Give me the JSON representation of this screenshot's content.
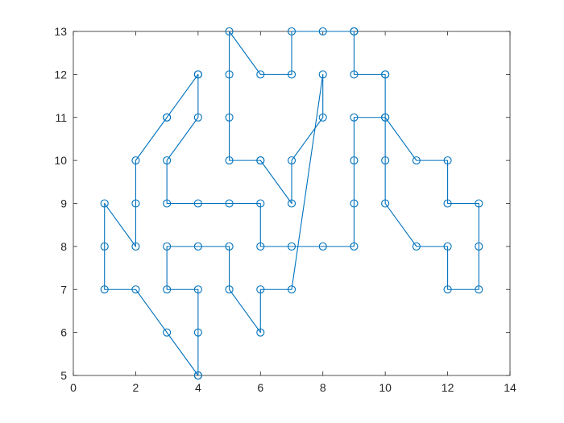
{
  "chart_data": {
    "type": "line",
    "title": "",
    "xlabel": "",
    "ylabel": "",
    "xlim": [
      0,
      14
    ],
    "ylim": [
      5,
      13
    ],
    "xticks": [
      0,
      2,
      4,
      6,
      8,
      10,
      12,
      14
    ],
    "yticks": [
      5,
      6,
      7,
      8,
      9,
      10,
      11,
      12,
      13
    ],
    "grid": false,
    "legend": "none",
    "marker": "circle",
    "color": "#0072BD",
    "series": [
      {
        "x": [
          4,
          3,
          2,
          1,
          1,
          1,
          2,
          2,
          2,
          3,
          3,
          4,
          4,
          4,
          3,
          3,
          4,
          5,
          6,
          6,
          7,
          8,
          9,
          9,
          9,
          9,
          10,
          10,
          10,
          11,
          12,
          12,
          13,
          13,
          13,
          12,
          12,
          11,
          10,
          10,
          10,
          9,
          9,
          9,
          8,
          7,
          7,
          6,
          5,
          5,
          5,
          5,
          6,
          6,
          7,
          7,
          8,
          8,
          7,
          6,
          6,
          5,
          5,
          4,
          3,
          3,
          4,
          4,
          4
        ],
        "y": [
          5,
          6,
          7,
          7,
          8,
          9,
          8,
          9,
          10,
          11,
          11,
          12,
          12,
          11,
          10,
          9,
          9,
          9,
          9,
          8,
          8,
          8,
          8,
          9,
          10,
          11,
          11,
          10,
          9,
          8,
          8,
          7,
          7,
          8,
          9,
          9,
          10,
          10,
          11,
          12,
          12,
          12,
          13,
          13,
          13,
          13,
          12,
          12,
          13,
          12,
          11,
          10,
          10,
          10,
          9,
          10,
          11,
          12,
          7,
          7,
          6,
          7,
          8,
          8,
          8,
          7,
          7,
          6,
          5
        ]
      }
    ]
  }
}
